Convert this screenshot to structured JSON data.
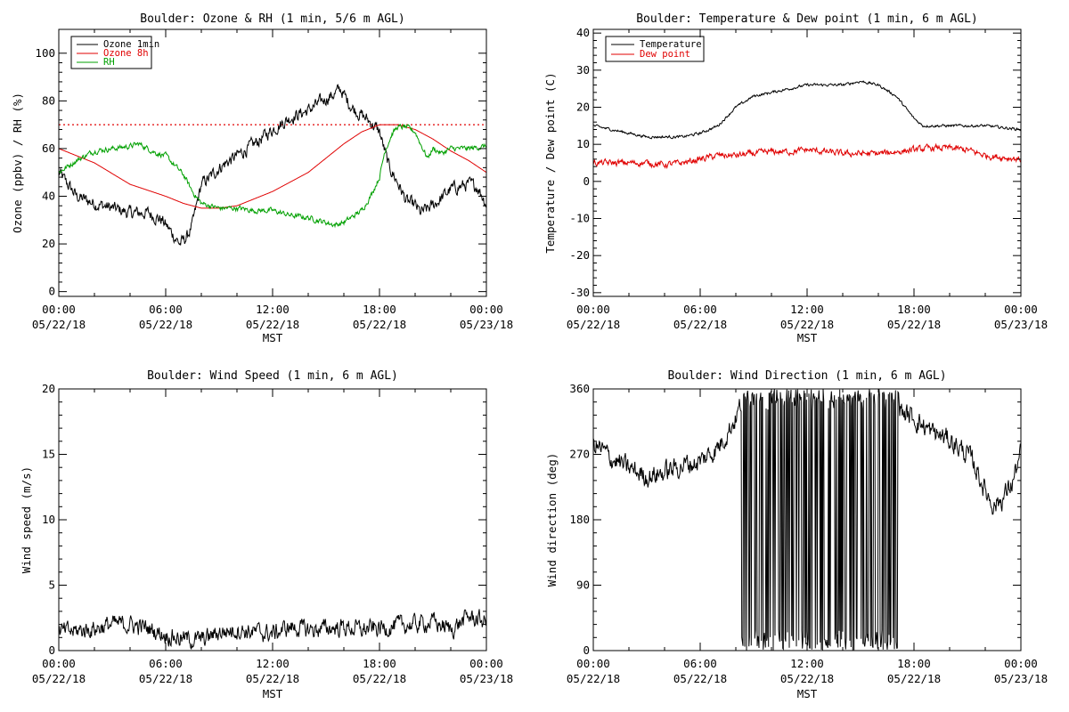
{
  "chart_data": [
    {
      "id": "ozone_rh",
      "type": "line",
      "title": "Boulder: Ozone & RH (1 min, 5/6 m AGL)",
      "xlabel": "MST",
      "ylabel": "Ozone (ppbv) / RH (%)",
      "ylim": [
        -2,
        110
      ],
      "yticks": [
        0,
        20,
        40,
        60,
        80,
        100
      ],
      "xticks": [
        {
          "time": "00:00",
          "date": "05/22/18",
          "hour": 0
        },
        {
          "time": "06:00",
          "date": "05/22/18",
          "hour": 6
        },
        {
          "time": "12:00",
          "date": "05/22/18",
          "hour": 12
        },
        {
          "time": "18:00",
          "date": "05/22/18",
          "hour": 18
        },
        {
          "time": "00:00",
          "date": "05/23/18",
          "hour": 24
        }
      ],
      "legend": "top-left",
      "reference_line": {
        "y": 70,
        "color": "#e00000",
        "style": "dotted"
      },
      "series": [
        {
          "name": "Ozone 1min",
          "color": "#000000",
          "noise": 2.2,
          "x": [
            0,
            0.5,
            1,
            2,
            3,
            4,
            5,
            5.8,
            6.3,
            6.8,
            7.2,
            7.5,
            8,
            8.5,
            9,
            10,
            11,
            12,
            13,
            14,
            15,
            15.5,
            15.8,
            16.2,
            16.5,
            17,
            17.5,
            18,
            18.5,
            19,
            19.5,
            20,
            20.3,
            20.8,
            21.3,
            22,
            23,
            23.5,
            24
          ],
          "y": [
            50,
            45,
            40,
            37,
            35,
            33,
            33,
            30,
            25,
            20,
            23,
            28,
            45,
            48,
            52,
            57,
            62,
            68,
            73,
            76,
            81,
            83,
            85,
            80,
            77,
            74,
            71,
            67,
            53,
            46,
            38,
            36,
            33,
            35,
            38,
            43,
            45,
            44,
            37
          ]
        },
        {
          "name": "Ozone 8h",
          "color": "#e00000",
          "noise": 0,
          "x": [
            0,
            2,
            4,
            6,
            7,
            8,
            9,
            10,
            12,
            14,
            16,
            17,
            18,
            19,
            20,
            21,
            22,
            23,
            24
          ],
          "y": [
            60,
            54,
            45,
            40,
            37,
            35,
            35,
            36,
            42,
            50,
            62,
            67,
            70,
            70,
            68,
            64,
            59,
            55,
            50
          ]
        },
        {
          "name": "RH",
          "color": "#00a000",
          "noise": 0.9,
          "x": [
            0,
            1,
            2,
            3,
            4,
            4.5,
            5,
            5.5,
            6,
            6.5,
            7,
            7.5,
            8,
            9,
            10,
            11,
            12,
            13,
            14,
            15,
            15.5,
            16,
            17,
            17.5,
            18,
            18.3,
            18.7,
            19,
            19.5,
            20,
            20.3,
            20.7,
            21,
            21.5,
            22,
            23,
            24
          ],
          "y": [
            50,
            55,
            59,
            60,
            61,
            62,
            60,
            58,
            57,
            53,
            49,
            42,
            37,
            35,
            35,
            34,
            34,
            32,
            31,
            29,
            28,
            29,
            34,
            40,
            48,
            59,
            66,
            69,
            69,
            67,
            62,
            56,
            60,
            58,
            60,
            60,
            61
          ]
        }
      ]
    },
    {
      "id": "temp_dew",
      "type": "line",
      "title": "Boulder: Temperature & Dew point (1 min, 6 m AGL)",
      "xlabel": "MST",
      "ylabel": "Temperature / Dew point (C)",
      "ylim": [
        -31,
        41
      ],
      "yticks": [
        -30,
        -20,
        -10,
        0,
        10,
        20,
        30,
        40
      ],
      "xticks": [
        {
          "time": "00:00",
          "date": "05/22/18",
          "hour": 0
        },
        {
          "time": "06:00",
          "date": "05/22/18",
          "hour": 6
        },
        {
          "time": "12:00",
          "date": "05/22/18",
          "hour": 12
        },
        {
          "time": "18:00",
          "date": "05/22/18",
          "hour": 18
        },
        {
          "time": "00:00",
          "date": "05/23/18",
          "hour": 24
        }
      ],
      "legend": "top-left",
      "series": [
        {
          "name": "Temperature",
          "color": "#000000",
          "noise": 0.3,
          "x": [
            0,
            1,
            2,
            3,
            4,
            5,
            6,
            7,
            8,
            9,
            10,
            11,
            12,
            13,
            14,
            15,
            16,
            17,
            17.5,
            18,
            18.5,
            19,
            20,
            21,
            22,
            23,
            24
          ],
          "y": [
            15,
            14,
            13,
            12,
            12,
            12,
            13,
            15,
            20,
            23,
            24,
            25,
            26,
            26,
            26,
            27,
            26,
            23,
            20,
            17,
            15,
            15,
            15,
            15,
            15,
            14.5,
            14
          ]
        },
        {
          "name": "Dew point",
          "color": "#e00000",
          "noise": 0.7,
          "x": [
            0,
            1,
            2,
            3,
            4,
            5,
            6,
            7,
            8,
            9,
            10,
            11,
            12,
            13,
            14,
            15,
            16,
            17,
            18,
            19,
            20,
            21,
            22,
            23,
            24
          ],
          "y": [
            5,
            5,
            5,
            5,
            4.5,
            5,
            6,
            7,
            7,
            7.5,
            8,
            8,
            8.5,
            8,
            7.5,
            7.5,
            7.5,
            8,
            8.5,
            9,
            9,
            8.5,
            7,
            6.5,
            6
          ]
        }
      ]
    },
    {
      "id": "wind_speed",
      "type": "line",
      "title": "Boulder: Wind Speed (1 min, 6 m AGL)",
      "xlabel": "MST",
      "ylabel": "Wind speed (m/s)",
      "ylim": [
        0,
        20
      ],
      "yticks": [
        0,
        5,
        10,
        15,
        20
      ],
      "xticks": [
        {
          "time": "00:00",
          "date": "05/22/18",
          "hour": 0
        },
        {
          "time": "06:00",
          "date": "05/22/18",
          "hour": 6
        },
        {
          "time": "12:00",
          "date": "05/22/18",
          "hour": 12
        },
        {
          "time": "18:00",
          "date": "05/22/18",
          "hour": 18
        },
        {
          "time": "00:00",
          "date": "05/23/18",
          "hour": 24
        }
      ],
      "series": [
        {
          "name": "",
          "color": "#000000",
          "noise": 0.55,
          "x": [
            0,
            1,
            2,
            3,
            4,
            5,
            6,
            7,
            8,
            9,
            10,
            11,
            12,
            13,
            14,
            15,
            16,
            17,
            18,
            19,
            20,
            21,
            22,
            23,
            24
          ],
          "y": [
            1.4,
            1.5,
            1.7,
            2.0,
            2.0,
            1.7,
            1.2,
            0.9,
            0.8,
            1.4,
            1.6,
            1.4,
            1.3,
            1.8,
            1.6,
            1.7,
            1.8,
            1.6,
            1.7,
            1.9,
            2.0,
            2.2,
            1.6,
            2.6,
            2.2
          ]
        }
      ]
    },
    {
      "id": "wind_dir",
      "type": "line",
      "title": "Boulder: Wind Direction (1 min, 6 m AGL)",
      "xlabel": "MST",
      "ylabel": "Wind direction (deg)",
      "ylim": [
        0,
        360
      ],
      "yticks": [
        0,
        90,
        180,
        270,
        360
      ],
      "xticks": [
        {
          "time": "00:00",
          "date": "05/22/18",
          "hour": 0
        },
        {
          "time": "06:00",
          "date": "05/22/18",
          "hour": 6
        },
        {
          "time": "12:00",
          "date": "05/22/18",
          "hour": 12
        },
        {
          "time": "18:00",
          "date": "05/22/18",
          "hour": 18
        },
        {
          "time": "00:00",
          "date": "05/23/18",
          "hour": 24
        }
      ],
      "wrap_region": [
        8.3,
        17.2
      ],
      "series": [
        {
          "name": "",
          "color": "#000000",
          "noise": 12,
          "x": [
            0,
            1,
            2,
            3,
            4,
            5,
            6,
            7,
            8,
            8.3,
            17.2,
            18,
            19,
            20,
            21,
            21.5,
            22,
            22.5,
            23,
            23.5,
            24
          ],
          "y": [
            285,
            265,
            250,
            240,
            245,
            255,
            260,
            280,
            320,
            340,
            330,
            320,
            300,
            290,
            270,
            250,
            220,
            200,
            210,
            230,
            270
          ]
        }
      ]
    }
  ]
}
